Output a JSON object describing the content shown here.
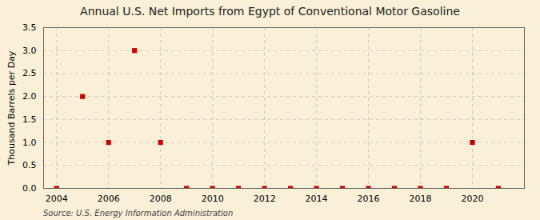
{
  "chart_data": {
    "type": "scatter",
    "title": "Annual U.S. Net Imports from Egypt of Conventional Motor Gasoline",
    "ylabel": "Thousand Barrels per Day",
    "annotations": [
      "Source: U.S. Energy Information Administration"
    ],
    "x": [
      2004,
      2005,
      2006,
      2007,
      2008,
      2009,
      2010,
      2011,
      2012,
      2013,
      2014,
      2015,
      2016,
      2017,
      2018,
      2019,
      2020,
      2021
    ],
    "values": [
      0.0,
      2.0,
      1.0,
      3.0,
      1.0,
      0.0,
      0.0,
      0.0,
      0.0,
      0.0,
      0.0,
      0.0,
      0.0,
      0.0,
      0.0,
      0.0,
      1.0,
      0.0
    ],
    "color": "#cc0000",
    "marker": "square",
    "xlim": [
      2003.5,
      2022
    ],
    "xticks": [
      2004,
      2006,
      2008,
      2010,
      2012,
      2014,
      2016,
      2018,
      2020
    ],
    "ylim": [
      0.0,
      3.5
    ],
    "yticks": [
      {
        "value": 0,
        "label": "0.0"
      },
      0.5,
      {
        "value": 1,
        "label": "1.0"
      },
      1.5,
      {
        "value": 2,
        "label": "2.0"
      },
      2.5,
      {
        "value": 3,
        "label": "3.0"
      },
      3.5
    ],
    "grid": true
  }
}
